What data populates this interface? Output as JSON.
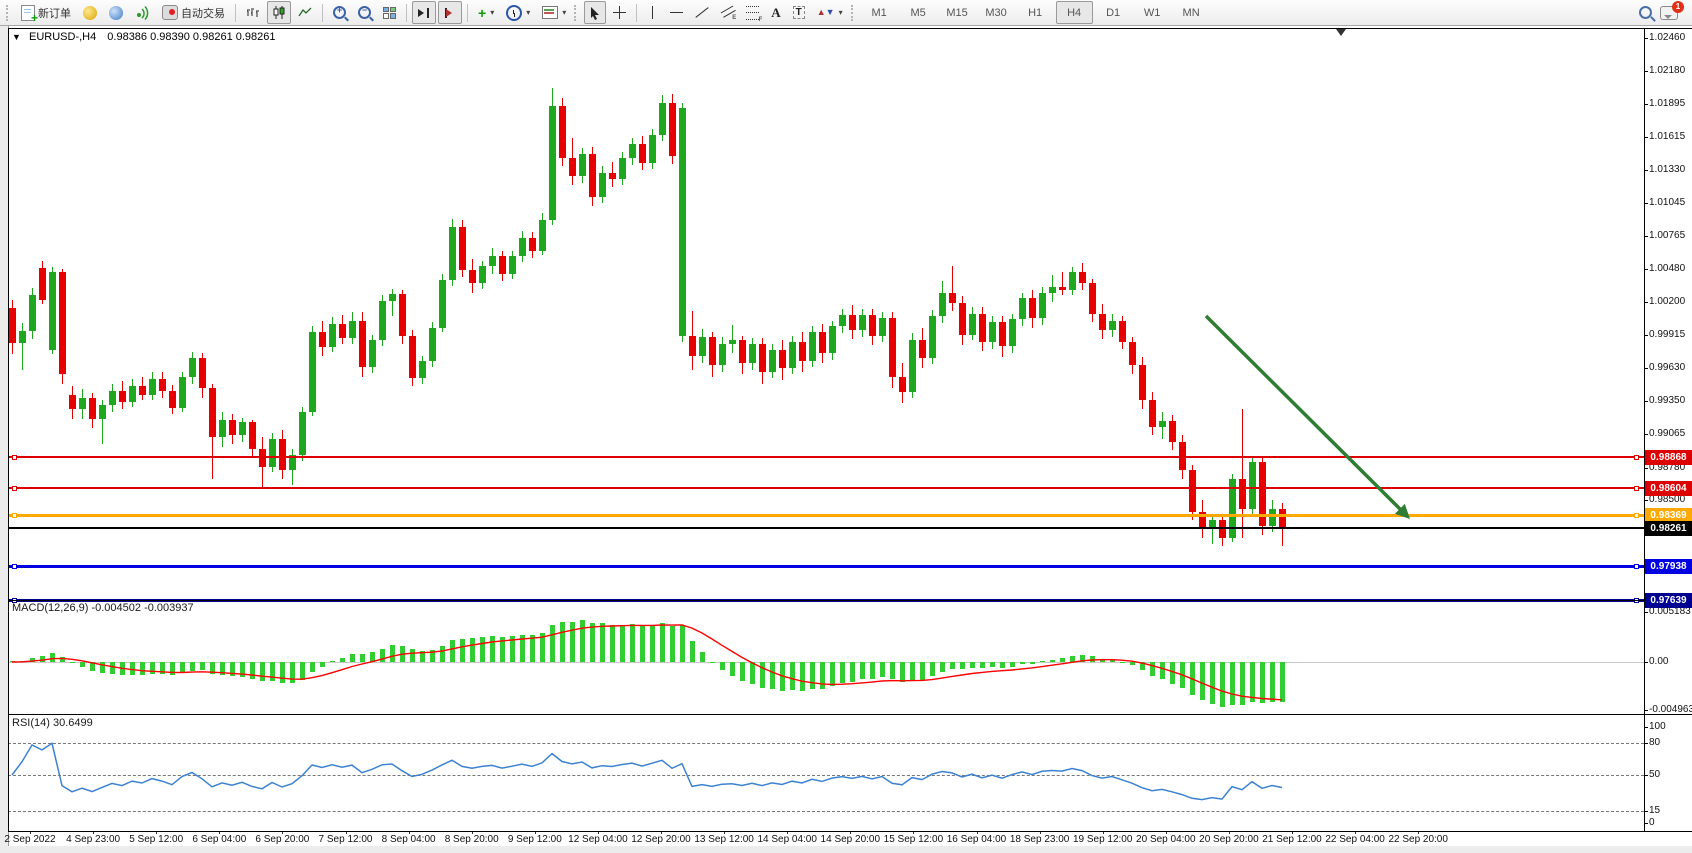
{
  "toolbar": {
    "new_order": "新订单",
    "auto_trading": "自动交易",
    "timeframes": [
      "M1",
      "M5",
      "M15",
      "M30",
      "H1",
      "H4",
      "D1",
      "W1",
      "MN"
    ],
    "active_timeframe": "H4",
    "chat_badge": "1"
  },
  "chart": {
    "title_symbol": "EURUSD-,H4",
    "ohlc": "0.98386 0.98390 0.98261 0.98261",
    "price_ticks": [
      "1.02460",
      "1.02180",
      "1.01895",
      "1.01615",
      "1.01330",
      "1.01045",
      "1.00765",
      "1.00480",
      "1.00200",
      "0.99915",
      "0.99630",
      "0.99350",
      "0.99065",
      "0.98780",
      "0.98500",
      "0.98215"
    ],
    "hlines": [
      {
        "price": 0.98868,
        "label": "0.98868",
        "color": "#dd0000",
        "thickness": 2
      },
      {
        "price": 0.98604,
        "label": "0.98604",
        "color": "#dd0000",
        "thickness": 2
      },
      {
        "price": 0.98369,
        "label": "0.98369",
        "color": "#ffa800",
        "thickness": 3
      },
      {
        "price": 0.98261,
        "label": "0.98261",
        "color": "#000000",
        "thickness": 2
      },
      {
        "price": 0.97938,
        "label": "0.97938",
        "color": "#0000e0",
        "thickness": 3
      },
      {
        "price": 0.97639,
        "label": "0.97639",
        "color": "#000090",
        "thickness": 3
      }
    ],
    "time_labels": [
      "2 Sep 2022",
      "4 Sep 23:00",
      "5 Sep 12:00",
      "6 Sep 04:00",
      "6 Sep 20:00",
      "7 Sep 12:00",
      "8 Sep 04:00",
      "8 Sep 20:00",
      "9 Sep 12:00",
      "12 Sep 04:00",
      "12 Sep 20:00",
      "13 Sep 12:00",
      "14 Sep 04:00",
      "14 Sep 20:00",
      "15 Sep 12:00",
      "16 Sep 04:00",
      "18 Sep 23:00",
      "19 Sep 12:00",
      "20 Sep 04:00",
      "20 Sep 20:00",
      "21 Sep 12:00",
      "22 Sep 04:00",
      "22 Sep 20:00"
    ],
    "macd_label": "MACD(12,26,9) -0.004502 -0.003937",
    "macd_axis": [
      "0.005183",
      "0.00",
      "-0.004963"
    ],
    "rsi_label": "RSI(14) 30.6499",
    "rsi_axis": [
      "100",
      "80",
      "50",
      "15",
      "0"
    ]
  },
  "colors": {
    "bull": "#1fa81f",
    "bear": "#e60000",
    "macd_hist": "#32cd32",
    "macd_signal": "#ff0000",
    "rsi_line": "#3c82d2",
    "arrow": "#2e7d32"
  },
  "chart_data": {
    "type": "candlestick",
    "symbol": "EURUSD-",
    "timeframe": "H4",
    "ohlc_display": {
      "open": "0.98386",
      "high": "0.98390",
      "low": "0.98261",
      "close": "0.98261"
    },
    "price_axis_range": [
      0.975,
      1.0246
    ],
    "indicators": [
      {
        "name": "MACD",
        "params": [
          12,
          26,
          9
        ],
        "values": [
          -0.004502,
          -0.003937
        ],
        "axis_max": 0.005183,
        "axis_min": -0.004963
      },
      {
        "name": "RSI",
        "params": [
          14
        ],
        "value": 30.6499,
        "levels": [
          80,
          50,
          15
        ]
      }
    ],
    "annotations": [
      {
        "type": "trend-arrow",
        "direction": "down-right",
        "color": "#2e7d32"
      }
    ],
    "candles": [
      [
        1.0015,
        1.0022,
        0.9975,
        0.9985
      ],
      [
        0.9985,
        1.0002,
        0.9962,
        0.9995
      ],
      [
        0.9995,
        1.0032,
        0.9988,
        1.0026
      ],
      [
        1.0049,
        1.0055,
        1.0018,
        1.0022
      ],
      [
        0.9979,
        1.005,
        0.9975,
        1.0046
      ],
      [
        1.0046,
        1.0048,
        0.995,
        0.9958
      ],
      [
        0.994,
        0.9948,
        0.992,
        0.9928
      ],
      [
        0.9928,
        0.9945,
        0.992,
        0.9938
      ],
      [
        0.9938,
        0.9942,
        0.9912,
        0.992
      ],
      [
        0.992,
        0.9936,
        0.9898,
        0.9932
      ],
      [
        0.9932,
        0.995,
        0.9926,
        0.9944
      ],
      [
        0.9944,
        0.9952,
        0.9928,
        0.9934
      ],
      [
        0.9934,
        0.9954,
        0.993,
        0.9948
      ],
      [
        0.9948,
        0.9956,
        0.9936,
        0.994
      ],
      [
        0.994,
        0.996,
        0.9936,
        0.9954
      ],
      [
        0.9954,
        0.996,
        0.9938,
        0.9944
      ],
      [
        0.9944,
        0.9949,
        0.9924,
        0.9929
      ],
      [
        0.9929,
        0.996,
        0.9926,
        0.9956
      ],
      [
        0.9956,
        0.9977,
        0.995,
        0.9972
      ],
      [
        0.9972,
        0.9976,
        0.9938,
        0.9946
      ],
      [
        0.9946,
        0.995,
        0.9868,
        0.9904
      ],
      [
        0.9904,
        0.9926,
        0.9896,
        0.9919
      ],
      [
        0.9919,
        0.9924,
        0.9898,
        0.9906
      ],
      [
        0.9906,
        0.9921,
        0.99,
        0.9917
      ],
      [
        0.9917,
        0.9919,
        0.9888,
        0.9894
      ],
      [
        0.9894,
        0.9904,
        0.9861,
        0.9879
      ],
      [
        0.9879,
        0.9908,
        0.9874,
        0.9903
      ],
      [
        0.9903,
        0.991,
        0.9868,
        0.9876
      ],
      [
        0.9876,
        0.9894,
        0.9863,
        0.9889
      ],
      [
        0.9889,
        0.993,
        0.9884,
        0.9926
      ],
      [
        0.9926,
        0.9999,
        0.9922,
        0.9994
      ],
      [
        0.9994,
        1.0004,
        0.9974,
        0.9981
      ],
      [
        0.9981,
        1.0007,
        0.9977,
        1.0001
      ],
      [
        1.0001,
        1.0009,
        0.9984,
        0.9989
      ],
      [
        0.9989,
        1.0011,
        0.9984,
        1.0004
      ],
      [
        1.0004,
        1.0011,
        0.9956,
        0.9964
      ],
      [
        0.9964,
        0.9992,
        0.9959,
        0.9987
      ],
      [
        0.9987,
        1.0026,
        0.9982,
        1.0021
      ],
      [
        1.0021,
        1.0031,
        1.0008,
        1.0027
      ],
      [
        1.0027,
        1.003,
        0.9984,
        0.9991
      ],
      [
        0.9991,
        0.9996,
        0.9948,
        0.9955
      ],
      [
        0.9955,
        0.9974,
        0.995,
        0.9969
      ],
      [
        0.9969,
        1.0003,
        0.9964,
        0.9998
      ],
      [
        0.9998,
        1.0044,
        0.9994,
        1.0039
      ],
      [
        1.0039,
        1.0091,
        1.0034,
        1.0084
      ],
      [
        1.0084,
        1.009,
        1.0041,
        1.0047
      ],
      [
        1.0047,
        1.0057,
        1.0028,
        1.0036
      ],
      [
        1.0036,
        1.0055,
        1.0031,
        1.0051
      ],
      [
        1.0051,
        1.0066,
        1.0044,
        1.0059
      ],
      [
        1.0059,
        1.0064,
        1.0038,
        1.0044
      ],
      [
        1.0044,
        1.0064,
        1.004,
        1.0059
      ],
      [
        1.0059,
        1.0081,
        1.0054,
        1.0075
      ],
      [
        1.0075,
        1.008,
        1.0058,
        1.0064
      ],
      [
        1.0064,
        1.0096,
        1.006,
        1.009
      ],
      [
        1.009,
        1.0203,
        1.0086,
        1.0188
      ],
      [
        1.0188,
        1.0195,
        1.0136,
        1.0143
      ],
      [
        1.0143,
        1.016,
        1.012,
        1.0128
      ],
      [
        1.0128,
        1.0152,
        1.0122,
        1.0147
      ],
      [
        1.0147,
        1.0153,
        1.0102,
        1.011
      ],
      [
        1.011,
        1.0136,
        1.0105,
        1.013
      ],
      [
        1.013,
        1.014,
        1.0118,
        1.0125
      ],
      [
        1.0125,
        1.0148,
        1.012,
        1.0143
      ],
      [
        1.0143,
        1.016,
        1.0137,
        1.0155
      ],
      [
        1.0155,
        1.0162,
        1.0133,
        1.0139
      ],
      [
        1.0139,
        1.0168,
        1.0134,
        1.0163
      ],
      [
        1.0163,
        1.0197,
        1.0158,
        1.019
      ],
      [
        1.019,
        1.0198,
        1.0138,
        1.0145
      ],
      [
        0.9991,
        1.019,
        0.9986,
        1.0186
      ],
      [
        0.9991,
        1.0012,
        0.9962,
        0.9974
      ],
      [
        0.9974,
        0.9997,
        0.9968,
        0.999
      ],
      [
        0.999,
        0.9994,
        0.9956,
        0.9966
      ],
      [
        0.9966,
        0.999,
        0.996,
        0.9984
      ],
      [
        0.9984,
        1.0,
        0.9976,
        0.9987
      ],
      [
        0.9987,
        0.9991,
        0.9958,
        0.9968
      ],
      [
        0.9968,
        0.9989,
        0.9962,
        0.9984
      ],
      [
        0.9984,
        0.9989,
        0.995,
        0.996
      ],
      [
        0.996,
        0.9984,
        0.9955,
        0.9979
      ],
      [
        0.9979,
        0.9987,
        0.9953,
        0.9963
      ],
      [
        0.9963,
        0.9991,
        0.9958,
        0.9986
      ],
      [
        0.9986,
        0.9994,
        0.996,
        0.9969
      ],
      [
        0.9969,
        0.9999,
        0.9964,
        0.9994
      ],
      [
        0.9994,
        1.0001,
        0.9968,
        0.9976
      ],
      [
        0.9976,
        1.0004,
        0.997,
        0.9999
      ],
      [
        0.9999,
        1.0014,
        0.9993,
        1.0009
      ],
      [
        1.0009,
        1.0017,
        0.9988,
        0.9996
      ],
      [
        0.9996,
        1.0014,
        0.999,
        1.0009
      ],
      [
        1.0009,
        1.0014,
        0.9983,
        0.9991
      ],
      [
        0.9991,
        1.0011,
        0.9986,
        1.0006
      ],
      [
        1.0006,
        1.0011,
        0.9946,
        0.9956
      ],
      [
        0.9956,
        0.9968,
        0.9933,
        0.9943
      ],
      [
        0.9943,
        0.9993,
        0.9938,
        0.9987
      ],
      [
        0.9987,
        0.9998,
        0.9963,
        0.9972
      ],
      [
        0.9972,
        1.0013,
        0.9967,
        1.0008
      ],
      [
        1.0008,
        1.0038,
        1.0002,
        1.0028
      ],
      [
        1.0028,
        1.0051,
        1.0012,
        1.0019
      ],
      [
        1.0019,
        1.0025,
        0.9983,
        0.9992
      ],
      [
        0.9992,
        1.0016,
        0.9987,
        1.001
      ],
      [
        1.001,
        1.0016,
        0.9978,
        0.9986
      ],
      [
        0.9986,
        1.0008,
        0.998,
        1.0003
      ],
      [
        1.0003,
        1.0008,
        0.9973,
        0.9982
      ],
      [
        0.9982,
        1.001,
        0.9976,
        1.0005
      ],
      [
        1.0005,
        1.0028,
        0.9999,
        1.0023
      ],
      [
        1.0023,
        1.003,
        0.9998,
        1.0006
      ],
      [
        1.0006,
        1.0033,
        1.0,
        1.0028
      ],
      [
        1.0028,
        1.0043,
        1.002,
        1.0033
      ],
      [
        1.0033,
        1.0046,
        1.0026,
        1.003
      ],
      [
        1.003,
        1.005,
        1.0026,
        1.0046
      ],
      [
        1.0046,
        1.0053,
        1.003,
        1.0036
      ],
      [
        1.0036,
        1.004,
        1.0003,
        1.001
      ],
      [
        1.001,
        1.0018,
        0.9988,
        0.9996
      ],
      [
        0.9996,
        1.001,
        0.999,
        1.0004
      ],
      [
        1.0004,
        1.0008,
        0.998,
        0.9986
      ],
      [
        0.9986,
        0.999,
        0.9958,
        0.9966
      ],
      [
        0.9966,
        0.9973,
        0.9928,
        0.9936
      ],
      [
        0.9936,
        0.9943,
        0.9906,
        0.9913
      ],
      [
        0.9913,
        0.9926,
        0.9903,
        0.9918
      ],
      [
        0.9918,
        0.9923,
        0.9893,
        0.99
      ],
      [
        0.99,
        0.9906,
        0.9868,
        0.9876
      ],
      [
        0.9876,
        0.988,
        0.9833,
        0.984
      ],
      [
        0.984,
        0.985,
        0.9818,
        0.9826
      ],
      [
        0.9826,
        0.9838,
        0.9813,
        0.9833
      ],
      [
        0.9833,
        0.9836,
        0.9811,
        0.9818
      ],
      [
        0.9818,
        0.9873,
        0.9814,
        0.9868
      ],
      [
        0.9868,
        0.9928,
        0.9818,
        0.9843
      ],
      [
        0.9843,
        0.9888,
        0.9838,
        0.9883
      ],
      [
        0.9883,
        0.9888,
        0.982,
        0.9828
      ],
      [
        0.9828,
        0.985,
        0.9823,
        0.9843
      ],
      [
        0.9843,
        0.9848,
        0.9811,
        0.9826
      ]
    ]
  }
}
